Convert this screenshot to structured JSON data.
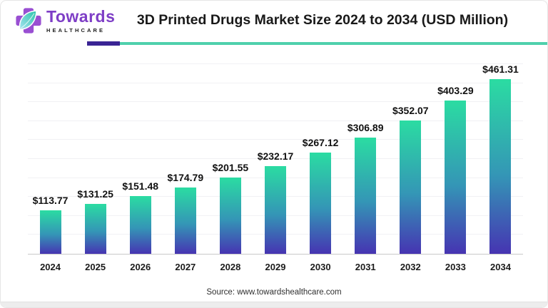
{
  "header": {
    "logo": {
      "brand": "Towards",
      "subtitle": "HEALTHCARE"
    },
    "title": "3D Printed Drugs Market Size 2024 to 2034 (USD Million)"
  },
  "chart_data": {
    "type": "bar",
    "title": "3D Printed Drugs Market Size 2024 to 2034 (USD Million)",
    "categories": [
      "2024",
      "2025",
      "2026",
      "2027",
      "2028",
      "2029",
      "2030",
      "2031",
      "2032",
      "2033",
      "2034"
    ],
    "values": [
      113.77,
      131.25,
      151.48,
      174.79,
      201.55,
      232.17,
      267.12,
      306.89,
      352.07,
      403.29,
      461.31
    ],
    "value_prefix": "$",
    "xlabel": "",
    "ylabel": "",
    "ylim": [
      0,
      500
    ],
    "gridline_step": 50,
    "grid": true,
    "legend_position": "none",
    "bar_color_top": "#2bdca2",
    "bar_color_mid": "#3496b6",
    "bar_color_bottom": "#4634b2"
  },
  "footer": {
    "source": "Source: www.towardshealthcare.com"
  },
  "accents": {
    "divider_purple": "#3a2494",
    "divider_teal": "#4fd0ac",
    "brand_purple": "#7e3ec6",
    "cross_purple": "#994fd2",
    "leaf_light": "#a8e4f2",
    "leaf_dark": "#27c3a8"
  }
}
